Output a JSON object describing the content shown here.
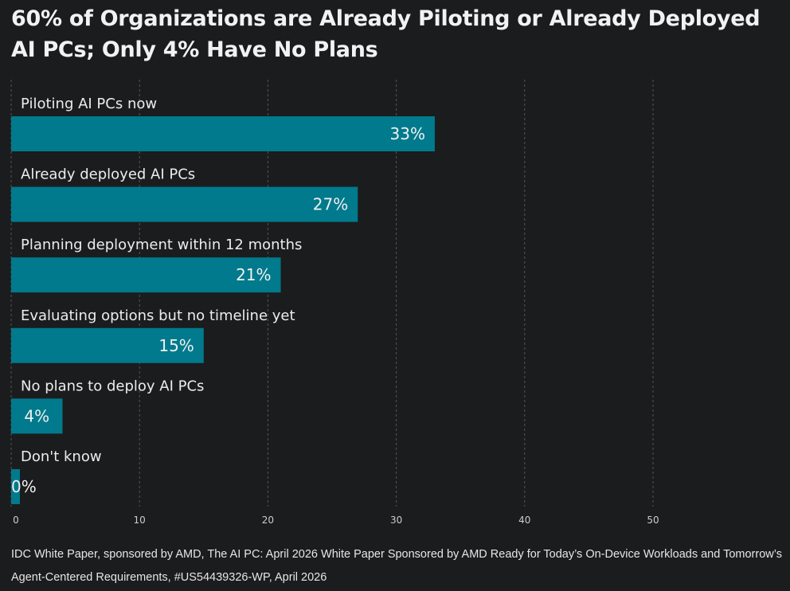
{
  "title": "60% of Organizations are Already Piloting or Already Deployed AI PCs; Only 4% Have No Plans",
  "footer": {
    "source": "IDC White Paper, sponsored by AMD, The AI PC: April 2026 White Paper Sponsored by AMD Ready for Today’s On-Device Workloads and Tomorrow’s Agent-Centered Requirements, #US54439326-WP, April 2026"
  },
  "colors": {
    "background": "#1b1c1e",
    "bar": "#007a8c",
    "text": "#ececec",
    "grid": "#555555",
    "tick": "#cccccc"
  },
  "chart_data": {
    "type": "bar",
    "orientation": "horizontal",
    "title": "60% of Organizations are Already Piloting or Already Deployed AI PCs; Only 4% Have No Plans",
    "xlabel": "",
    "ylabel": "",
    "categories": [
      "Piloting AI PCs now",
      "Already deployed AI PCs",
      "Planning deployment within 12 months",
      "Evaluating options but no timeline yet",
      "No plans to deploy AI PCs",
      "Don't know"
    ],
    "values": [
      33,
      27,
      21,
      15,
      4,
      0
    ],
    "value_labels": [
      "33%",
      "27%",
      "21%",
      "15%",
      "4%",
      "0%"
    ],
    "xlim": [
      0,
      55
    ],
    "xticks": [
      0,
      10,
      20,
      30,
      40,
      50
    ],
    "xtick_labels": [
      "0",
      "10",
      "20",
      "30",
      "40",
      "50"
    ],
    "grid": "vertical dashed",
    "legend": "none"
  }
}
